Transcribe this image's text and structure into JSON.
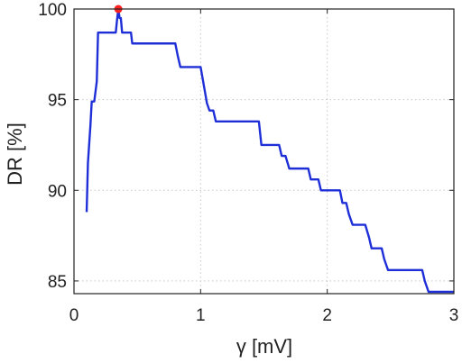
{
  "chart_data": {
    "type": "line",
    "xlabel": "γ [mV]",
    "ylabel": "DR [%]",
    "xlim": [
      0,
      3
    ],
    "ylim": [
      84.3,
      100
    ],
    "xticks": [
      0,
      1,
      2,
      3
    ],
    "yticks": [
      85,
      90,
      95,
      100
    ],
    "xtick_labels": [
      "0",
      "1",
      "2",
      "3"
    ],
    "ytick_labels": [
      "85",
      "90",
      "95",
      "100"
    ],
    "grid": true,
    "colors": {
      "line": "#1f2fd8",
      "highlight": "#ff2020",
      "grid": "#c8c8c8",
      "axes": "#222222"
    },
    "series": [
      {
        "points": [
          [
            0.1,
            88.8
          ],
          [
            0.11,
            91.5
          ],
          [
            0.13,
            93.6
          ],
          [
            0.14,
            94.9
          ],
          [
            0.16,
            94.9
          ],
          [
            0.18,
            96.0
          ],
          [
            0.19,
            98.7
          ],
          [
            0.33,
            98.7
          ],
          [
            0.34,
            99.4
          ],
          [
            0.35,
            100.0
          ],
          [
            0.36,
            99.5
          ],
          [
            0.37,
            99.5
          ],
          [
            0.38,
            98.7
          ],
          [
            0.45,
            98.7
          ],
          [
            0.46,
            98.1
          ],
          [
            0.8,
            98.1
          ],
          [
            0.82,
            97.4
          ],
          [
            0.84,
            96.8
          ],
          [
            1.0,
            96.8
          ],
          [
            1.02,
            96.0
          ],
          [
            1.03,
            95.6
          ],
          [
            1.05,
            94.8
          ],
          [
            1.07,
            94.4
          ],
          [
            1.1,
            94.4
          ],
          [
            1.12,
            93.8
          ],
          [
            1.46,
            93.8
          ],
          [
            1.48,
            92.5
          ],
          [
            1.62,
            92.5
          ],
          [
            1.64,
            91.9
          ],
          [
            1.67,
            91.9
          ],
          [
            1.7,
            91.2
          ],
          [
            1.85,
            91.2
          ],
          [
            1.87,
            90.6
          ],
          [
            1.93,
            90.6
          ],
          [
            1.95,
            90.0
          ],
          [
            2.1,
            90.0
          ],
          [
            2.12,
            89.3
          ],
          [
            2.15,
            89.3
          ],
          [
            2.17,
            88.7
          ],
          [
            2.2,
            88.1
          ],
          [
            2.3,
            88.1
          ],
          [
            2.33,
            87.4
          ],
          [
            2.35,
            86.8
          ],
          [
            2.43,
            86.8
          ],
          [
            2.45,
            86.2
          ],
          [
            2.48,
            85.6
          ],
          [
            2.75,
            85.6
          ],
          [
            2.77,
            85.0
          ],
          [
            2.8,
            84.4
          ],
          [
            3.0,
            84.4
          ]
        ]
      }
    ],
    "highlight_point": {
      "x": 0.35,
      "y": 100
    }
  }
}
